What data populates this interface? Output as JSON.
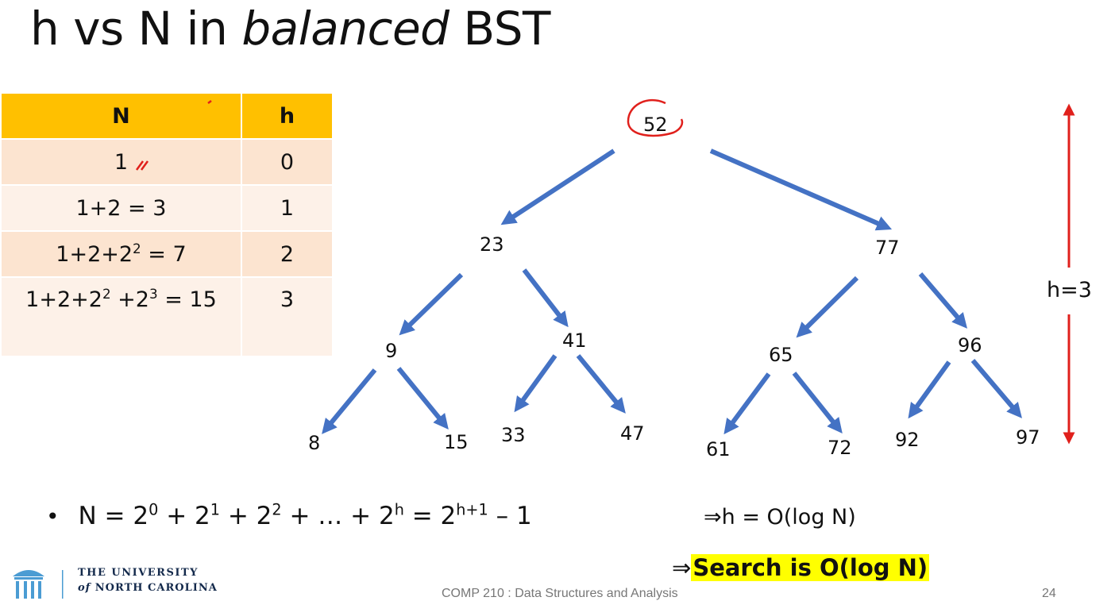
{
  "slide": {
    "title_prefix": "h vs N in ",
    "title_emph": "balanced",
    "title_suffix": " BST"
  },
  "table": {
    "headers": [
      "N",
      "h"
    ],
    "rows": [
      {
        "n_text": "1",
        "h": "0"
      },
      {
        "n_text": "1+2 = 3",
        "h": "1"
      },
      {
        "n_a": "1+2+2",
        "n_a_sup": "2",
        "n_b": " = 7",
        "h": "2"
      },
      {
        "n_a": "1+2+2",
        "n_a_sup": "2",
        "n_b": " +2",
        "n_b_sup": "3",
        "n_c": " = 15",
        "h": "3"
      }
    ]
  },
  "tree": {
    "root": "52",
    "level1": [
      "23",
      "77"
    ],
    "level2": [
      "9",
      "41",
      "65",
      "96"
    ],
    "leaves": [
      "8",
      "15",
      "33",
      "47",
      "61",
      "72",
      "92",
      "97"
    ],
    "height_label": "h=3",
    "arrow_color": "#4472c4",
    "height_arrow_color": "#e0201c",
    "annotation_color": "#e0201c"
  },
  "formula": {
    "bullet": "•",
    "lhs": "N = 2",
    "e0": "0",
    "p1": " + 2",
    "e1": "1",
    "p2": " + 2",
    "e2": "2",
    "p3": " + … + 2",
    "eh": "h",
    "p4": " = 2",
    "ehp1": "h+1",
    "tail": " – 1"
  },
  "implications": {
    "line1": "⇒h = O(log N)",
    "line2_arrow": "⇒",
    "line2_highlight": "Search is O(log N)"
  },
  "footer": {
    "university_line1": "THE UNIVERSITY",
    "university_line2_of": "of",
    "university_line2_rest": " NORTH CAROLINA",
    "course": "COMP 210 : Data Structures and Analysis",
    "page": "24",
    "logo_icon": "old-well-icon"
  }
}
